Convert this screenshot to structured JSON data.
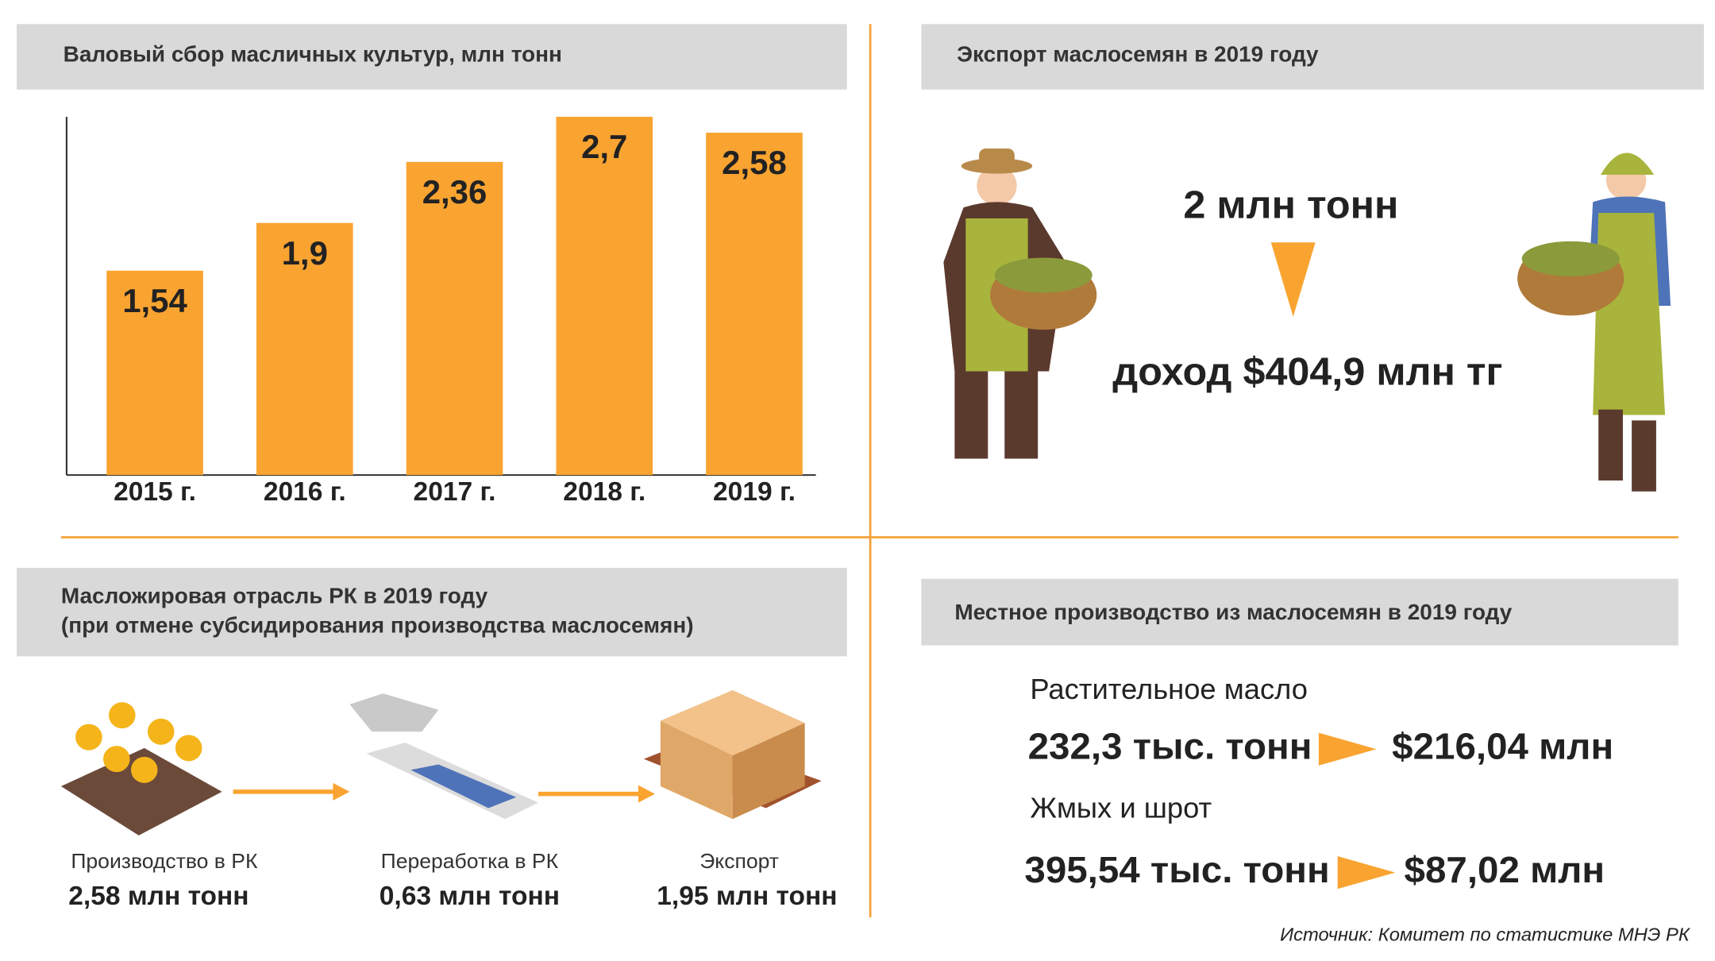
{
  "chart_data": {
    "type": "bar",
    "title": "Валовый сбор масличных культур, млн тонн",
    "categories": [
      "2015 г.",
      "2016 г.",
      "2017 г.",
      "2018 г.",
      "2019 г."
    ],
    "values": [
      1.54,
      1.9,
      2.36,
      2.7,
      2.58
    ],
    "value_labels": [
      "1,54",
      "1,9",
      "2,36",
      "2,7",
      "2,58"
    ],
    "color": "#f9a431",
    "ylim": [
      0,
      3
    ]
  },
  "export_panel": {
    "title": "Экспорт маслосемян в 2019 году",
    "volume": "2 млн тонн",
    "income": "доход $404,9 млн тг"
  },
  "industry_panel": {
    "title_lines": [
      "Масложировая отрасль РК в 2019 году",
      "(при отмене субсидирования производства маслосемян)"
    ],
    "steps": [
      {
        "label": "Производство в РК",
        "value": "2,58 млн тонн"
      },
      {
        "label": "Переработка в РК",
        "value": "0,63 млн тонн"
      },
      {
        "label": "Экспорт",
        "value": "1,95 млн тонн"
      }
    ]
  },
  "local_panel": {
    "title": "Местное производство из маслосемян  в 2019 году",
    "items": [
      {
        "name": "Растительное масло",
        "volume": "232,3 тыс. тонн",
        "revenue": "$216,04 млн"
      },
      {
        "name": "Жмых и шрот",
        "volume": "395,54 тыс. тонн",
        "revenue": "$87,02 млн"
      }
    ]
  },
  "source": "Источник: Комитет по статистике МНЭ РК"
}
